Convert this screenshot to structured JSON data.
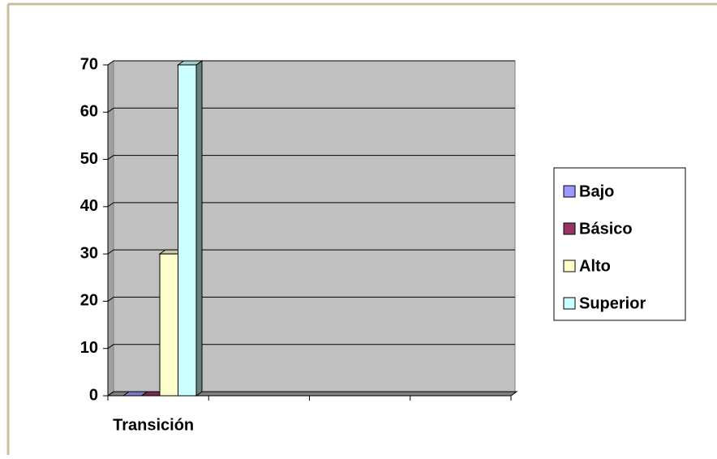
{
  "chart_data": {
    "type": "bar",
    "categories": [
      "Transición",
      null,
      null,
      null
    ],
    "series": [
      {
        "name": "Bajo",
        "color": "#9999ff",
        "values": [
          0,
          null,
          null,
          null
        ]
      },
      {
        "name": "Básico",
        "color": "#993366",
        "values": [
          0,
          null,
          null,
          null
        ]
      },
      {
        "name": "Alto",
        "color": "#ffffcc",
        "values": [
          30,
          null,
          null,
          null
        ]
      },
      {
        "name": "Superior",
        "color": "#ccffff",
        "values": [
          70,
          null,
          null,
          null
        ]
      }
    ],
    "ylim": [
      0,
      70
    ],
    "yticks": [
      0,
      10,
      20,
      30,
      40,
      50,
      60,
      70
    ],
    "grid": true,
    "legend": "right"
  }
}
